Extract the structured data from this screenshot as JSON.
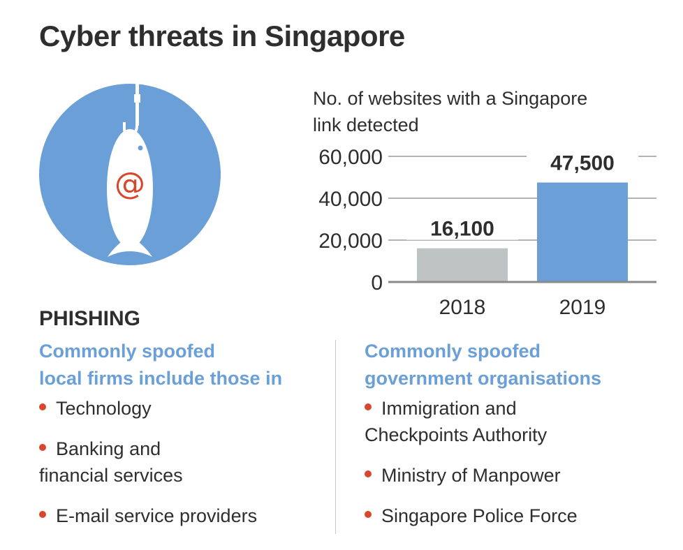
{
  "title": "Cyber threats in Singapore",
  "icon": {
    "name": "phishing-fish-hook-icon",
    "symbol": "@",
    "circle_color": "#6a9fd8",
    "symbol_color": "#d9472b"
  },
  "chart_data": {
    "type": "bar",
    "title": "No. of websites with a Singapore link detected",
    "categories": [
      "2018",
      "2019"
    ],
    "values": [
      16100,
      47500
    ],
    "data_labels": [
      "16,100",
      "47,500"
    ],
    "colors": [
      "#bdc4c3",
      "#6a9fd8"
    ],
    "ylim": [
      0,
      60000
    ],
    "yticks": [
      0,
      20000,
      40000,
      60000
    ],
    "ytick_labels": [
      "0",
      "20,000",
      "40,000",
      "60,000"
    ],
    "grid": true,
    "xlabel": "",
    "ylabel": ""
  },
  "section": {
    "heading": "PHISHING",
    "left": {
      "heading_line1": "Commonly spoofed",
      "heading_line2": "local firms include those in",
      "items": [
        "Technology",
        "Banking and financial services",
        "E-mail service providers"
      ]
    },
    "right": {
      "heading_line1": "Commonly spoofed",
      "heading_line2": "government organisations",
      "items": [
        "Immigration and Checkpoints Authority",
        "Ministry of Manpower",
        "Singapore Police Force"
      ]
    }
  },
  "colors": {
    "accent_blue": "#6a9fd8",
    "bullet_red": "#d9472b",
    "text": "#2e2e2e"
  }
}
